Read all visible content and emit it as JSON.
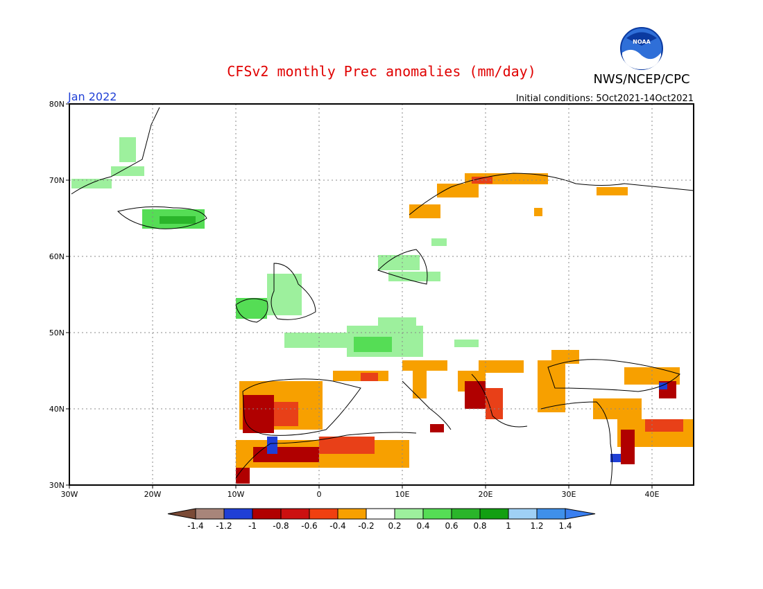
{
  "header": {
    "title": "CFSv2 monthly Prec anomalies (mm/day)",
    "title_color": "#e00000",
    "agency": "NWS/NCEP/CPC",
    "month": "Jan 2022",
    "month_color": "#1f3fd6",
    "initial_conditions": "Initial conditions: 5Oct2021-14Oct2021",
    "logo_text": "NOAA"
  },
  "map": {
    "lon_range": [
      -30,
      45
    ],
    "lat_range": [
      30,
      80
    ],
    "grid": true,
    "lat_labels": [
      "80N",
      "70N",
      "60N",
      "50N",
      "40N",
      "30N"
    ],
    "lat_values": [
      80,
      70,
      60,
      50,
      40,
      30
    ],
    "lon_labels": [
      "30W",
      "20W",
      "10W",
      "0",
      "10E",
      "20E",
      "30E",
      "40E"
    ],
    "lon_values": [
      -30,
      -20,
      -10,
      0,
      10,
      20,
      30,
      40
    ]
  },
  "legend": {
    "low_arrow_color": "#7a4a36",
    "high_arrow_color": "#3a7ff0",
    "colors": [
      "#a8857a",
      "#1f3fd6",
      "#b00000",
      "#cc1010",
      "#f04010",
      "#f7a000",
      "#ffffff",
      "#9df09d",
      "#55dd55",
      "#2ab52a",
      "#129f12",
      "#9fd0f5",
      "#3f90ea"
    ],
    "tick_labels": [
      "-1.4",
      "-1.2",
      "-1",
      "-0.8",
      "-0.6",
      "-0.4",
      "-0.2",
      "0.2",
      "0.4",
      "0.6",
      "0.8",
      "1",
      "1.2",
      "1.4"
    ]
  },
  "anomaly_colors": {
    "dry_strong": "#b00000",
    "dry_moderate": "#e84018",
    "dry_light": "#f7a000",
    "dry_very_strong": "#a8857a",
    "dry_extreme": "#1f3fd6",
    "wet_light": "#9df09d",
    "wet_moderate": "#55dd55",
    "wet_strong": "#2ab52a"
  }
}
